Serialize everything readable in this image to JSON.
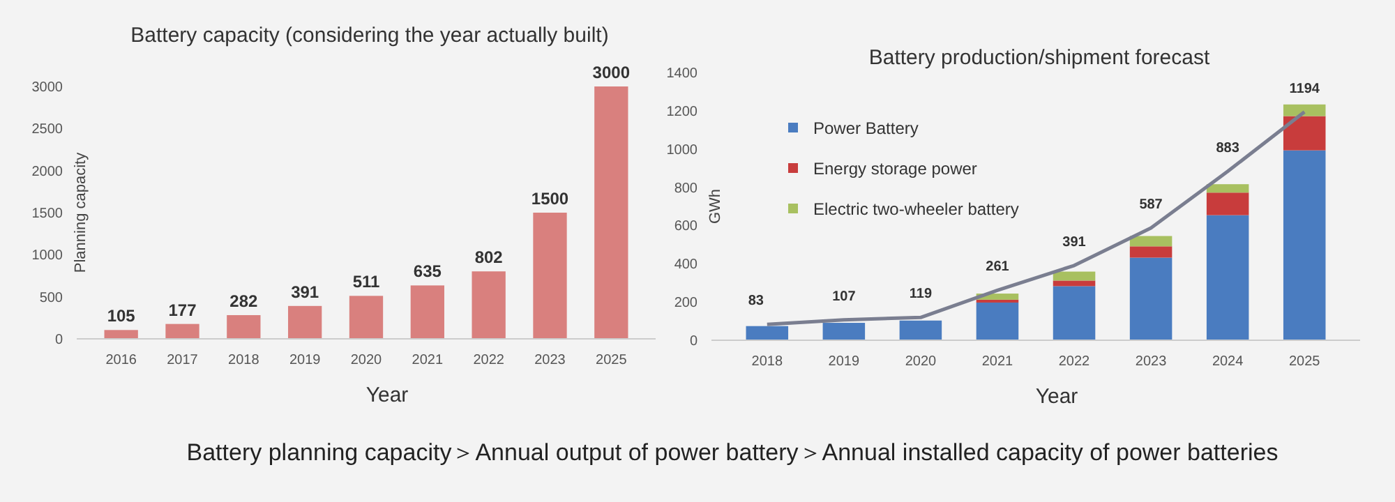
{
  "chart_data": [
    {
      "type": "bar",
      "title": "Battery capacity (considering the year actually built)",
      "xlabel": "Year",
      "ylabel": "Planning capacity",
      "categories": [
        "2016",
        "2017",
        "2018",
        "2019",
        "2020",
        "2021",
        "2022",
        "2023",
        "2025"
      ],
      "values": [
        105,
        177,
        282,
        391,
        511,
        635,
        802,
        1500,
        3000
      ],
      "data_labels": true,
      "color": "#d9807e",
      "ylim": [
        0,
        3000
      ],
      "yticks": [
        0,
        500,
        1000,
        1500,
        2000,
        2500,
        3000
      ],
      "grid": false,
      "annotations": [
        "Battery planning capacity＞Annual output of power battery＞Annual installed capacity of power batteries"
      ]
    },
    {
      "type": "bar",
      "stacked": true,
      "title": "Battery production/shipment forecast",
      "xlabel": "Year",
      "ylabel": "GWh",
      "categories": [
        "2018",
        "2019",
        "2020",
        "2021",
        "2022",
        "2023",
        "2024",
        "2025"
      ],
      "ylim": [
        0,
        1400
      ],
      "yticks": [
        0,
        200,
        400,
        600,
        800,
        1000,
        1200,
        1400
      ],
      "grid": false,
      "legend": "top left",
      "series": [
        {
          "name": "Power Battery",
          "color": "#4a7cc0",
          "values": [
            74,
            91,
            103,
            197,
            283,
            432,
            654,
            993
          ]
        },
        {
          "name": "Energy storage power",
          "color": "#c83c3c",
          "values": [
            0,
            0,
            0,
            15,
            29,
            59,
            118,
            179
          ]
        },
        {
          "name": "Electric two-wheeler battery",
          "color": "#a8c060",
          "values": [
            0,
            0,
            0,
            32,
            47,
            54,
            44,
            61
          ]
        },
        {
          "type": "line",
          "color": "#7a7e90",
          "values": [
            83,
            107,
            119,
            261,
            391,
            587,
            883,
            1194
          ],
          "data_labels": true
        }
      ]
    }
  ]
}
